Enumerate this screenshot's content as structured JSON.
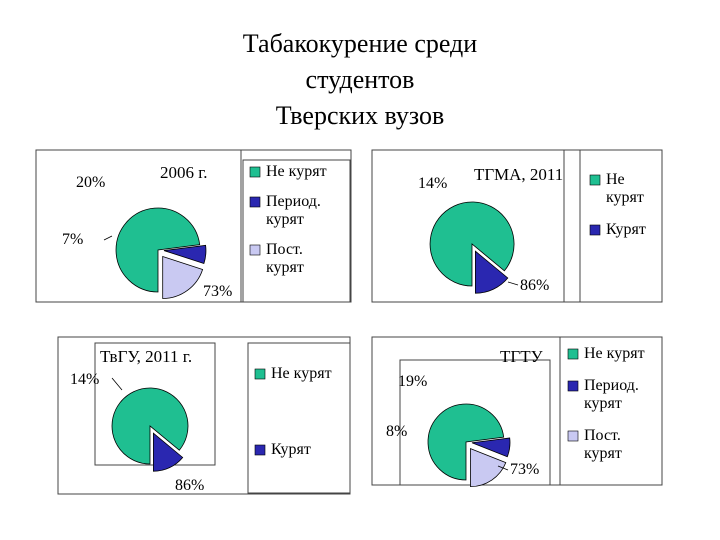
{
  "title": {
    "line1": "Табакокурение среди",
    "line2": "студентов",
    "line3": "Тверских вузов"
  },
  "chart_data": [
    {
      "type": "pie",
      "title": "2006 г.",
      "categories": [
        "Не курят",
        "Период. курят",
        "Пост. курят"
      ],
      "values": [
        73,
        7,
        20
      ],
      "labels": [
        "73%",
        "7%",
        "20%"
      ],
      "colors": [
        "#1fbf91",
        "#2a27b0",
        "#c9c9f2"
      ],
      "legend": [
        {
          "label": [
            "Не курят"
          ],
          "color": "#1fbf91"
        },
        {
          "label": [
            "Период.",
            "курят"
          ],
          "color": "#2a27b0"
        },
        {
          "label": [
            "Пост.",
            "курят"
          ],
          "color": "#c9c9f2"
        }
      ],
      "legend_position": "right"
    },
    {
      "type": "pie",
      "title": "ТГМА, 2011",
      "categories": [
        "Не курят",
        "Курят"
      ],
      "values": [
        86,
        14
      ],
      "labels": [
        "86%",
        "14%"
      ],
      "colors": [
        "#1fbf91",
        "#2a27b0"
      ],
      "legend": [
        {
          "label": [
            "Не",
            "курят"
          ],
          "color": "#1fbf91"
        },
        {
          "label": [
            "Курят"
          ],
          "color": "#2a27b0"
        }
      ],
      "legend_position": "right"
    },
    {
      "type": "pie",
      "title": "ТвГУ, 2011 г.",
      "categories": [
        "Не курят",
        "Курят"
      ],
      "values": [
        86,
        14
      ],
      "labels": [
        "86%",
        "14%"
      ],
      "colors": [
        "#1fbf91",
        "#2a27b0"
      ],
      "legend": [
        {
          "label": [
            "Не курят"
          ],
          "color": "#1fbf91"
        },
        {
          "label": [
            "Курят"
          ],
          "color": "#2a27b0"
        }
      ],
      "legend_position": "right"
    },
    {
      "type": "pie",
      "title": "ТГТУ",
      "categories": [
        "Не курят",
        "Период. курят",
        "Пост. курят"
      ],
      "values": [
        73,
        8,
        19
      ],
      "labels": [
        "73%",
        "8%",
        "19%"
      ],
      "colors": [
        "#1fbf91",
        "#2a27b0",
        "#c9c9f2"
      ],
      "legend": [
        {
          "label": [
            "Не курят"
          ],
          "color": "#1fbf91"
        },
        {
          "label": [
            "Период.",
            "курят"
          ],
          "color": "#2a27b0"
        },
        {
          "label": [
            "Пост.",
            "курят"
          ],
          "color": "#c9c9f2"
        }
      ],
      "legend_position": "right"
    }
  ]
}
